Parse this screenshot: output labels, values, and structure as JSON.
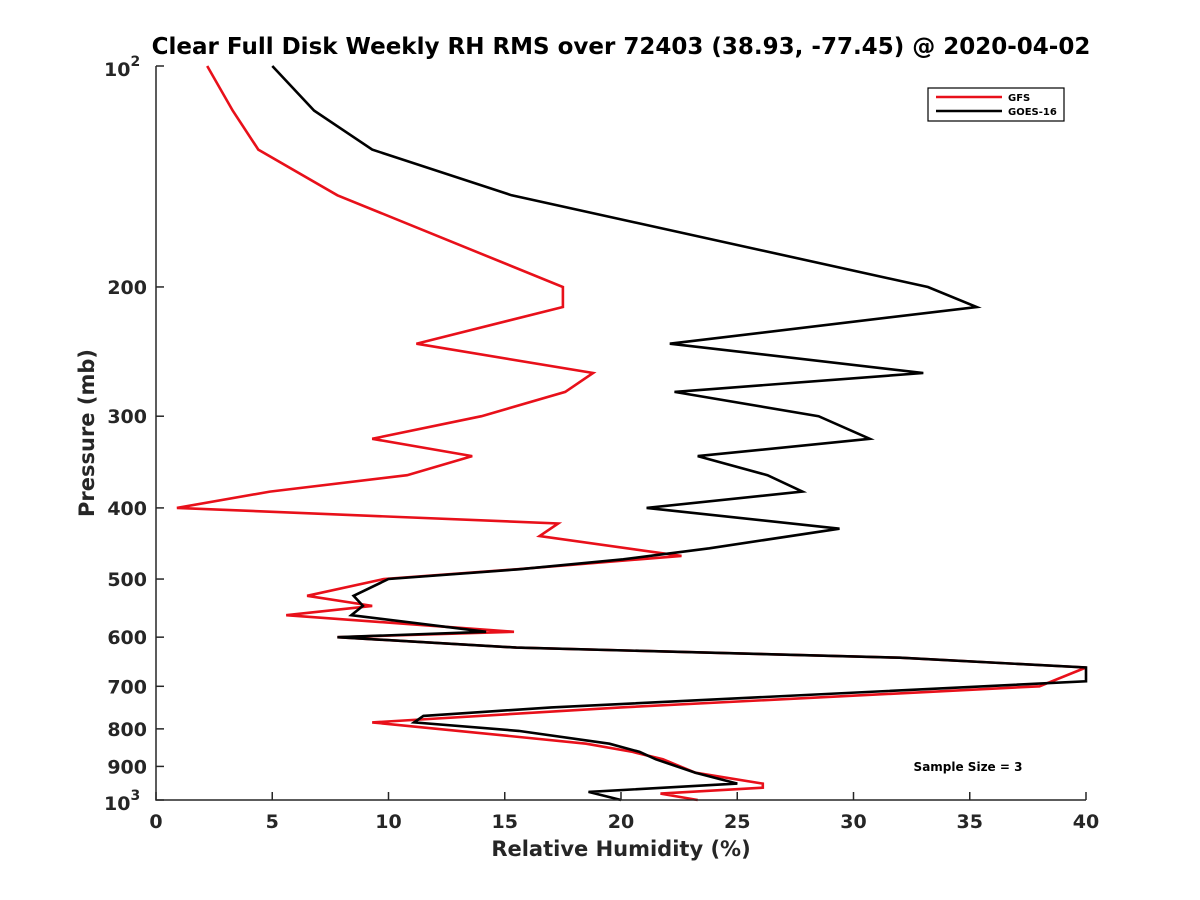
{
  "chart_data": {
    "type": "line",
    "title": "Clear Full Disk Weekly RH RMS over 72403 (38.93, -77.45) @ 2020-04-02",
    "xlabel": "Relative Humidity (%)",
    "ylabel": "Pressure (mb)",
    "xlim": [
      0,
      40
    ],
    "ylim": [
      100,
      1000
    ],
    "y_scale": "log",
    "y_reversed": true,
    "grid": false,
    "legend_position": "top-right",
    "x_ticks": [
      0,
      5,
      10,
      15,
      20,
      25,
      30,
      35,
      40
    ],
    "y_ticks": [
      {
        "value": 100,
        "label": "10",
        "sup": "2"
      },
      {
        "value": 200,
        "label": "200",
        "sup": ""
      },
      {
        "value": 300,
        "label": "300",
        "sup": ""
      },
      {
        "value": 400,
        "label": "400",
        "sup": ""
      },
      {
        "value": 500,
        "label": "500",
        "sup": ""
      },
      {
        "value": 600,
        "label": "600",
        "sup": ""
      },
      {
        "value": 700,
        "label": "700",
        "sup": ""
      },
      {
        "value": 800,
        "label": "800",
        "sup": ""
      },
      {
        "value": 900,
        "label": "900",
        "sup": ""
      },
      {
        "value": 1000,
        "label": "10",
        "sup": "3"
      }
    ],
    "series": [
      {
        "name": "GFS",
        "color": "#e8101a",
        "points": [
          [
            2.2,
            100
          ],
          [
            3.3,
            115
          ],
          [
            4.4,
            130
          ],
          [
            7.8,
            150
          ],
          [
            17.5,
            200
          ],
          [
            17.5,
            213
          ],
          [
            11.2,
            239
          ],
          [
            18.8,
            262
          ],
          [
            17.6,
            278
          ],
          [
            14.0,
            300
          ],
          [
            9.3,
            322
          ],
          [
            13.6,
            340
          ],
          [
            10.8,
            361
          ],
          [
            4.9,
            380
          ],
          [
            0.9,
            400
          ],
          [
            17.3,
            420
          ],
          [
            16.5,
            437
          ],
          [
            22.6,
            465
          ],
          [
            15.5,
            485
          ],
          [
            9.8,
            500
          ],
          [
            6.5,
            527
          ],
          [
            9.3,
            544
          ],
          [
            5.6,
            560
          ],
          [
            15.4,
            590
          ],
          [
            7.8,
            600
          ],
          [
            15.5,
            620
          ],
          [
            32.0,
            640
          ],
          [
            40.0,
            660
          ],
          [
            38.0,
            700
          ],
          [
            20.0,
            748
          ],
          [
            9.3,
            784
          ],
          [
            13.0,
            805
          ],
          [
            18.5,
            838
          ],
          [
            20.5,
            860
          ],
          [
            21.8,
            880
          ],
          [
            23.2,
            918
          ],
          [
            26.1,
            950
          ],
          [
            26.1,
            962
          ],
          [
            21.7,
            980
          ],
          [
            23.3,
            1000
          ]
        ]
      },
      {
        "name": "GOES-16",
        "color": "#000000",
        "points": [
          [
            5.0,
            100
          ],
          [
            6.8,
            115
          ],
          [
            9.3,
            130
          ],
          [
            15.3,
            150
          ],
          [
            33.2,
            200
          ],
          [
            35.3,
            213
          ],
          [
            22.1,
            239
          ],
          [
            33.0,
            262
          ],
          [
            22.3,
            278
          ],
          [
            28.5,
            300
          ],
          [
            30.7,
            322
          ],
          [
            23.3,
            340
          ],
          [
            26.3,
            361
          ],
          [
            27.8,
            380
          ],
          [
            21.1,
            400
          ],
          [
            29.4,
            427
          ],
          [
            23.8,
            454
          ],
          [
            20.1,
            470
          ],
          [
            15.6,
            485
          ],
          [
            10.0,
            500
          ],
          [
            8.5,
            527
          ],
          [
            8.9,
            544
          ],
          [
            8.4,
            560
          ],
          [
            14.2,
            590
          ],
          [
            7.8,
            600
          ],
          [
            15.5,
            620
          ],
          [
            32.0,
            640
          ],
          [
            40.0,
            660
          ],
          [
            40.0,
            689
          ],
          [
            17.0,
            748
          ],
          [
            11.5,
            768
          ],
          [
            11.1,
            784
          ],
          [
            15.6,
            805
          ],
          [
            19.5,
            838
          ],
          [
            20.8,
            860
          ],
          [
            21.5,
            880
          ],
          [
            23.2,
            918
          ],
          [
            25.0,
            950
          ],
          [
            18.6,
            975
          ],
          [
            20.0,
            1000
          ]
        ]
      }
    ],
    "annotation": "Sample Size = 3"
  }
}
